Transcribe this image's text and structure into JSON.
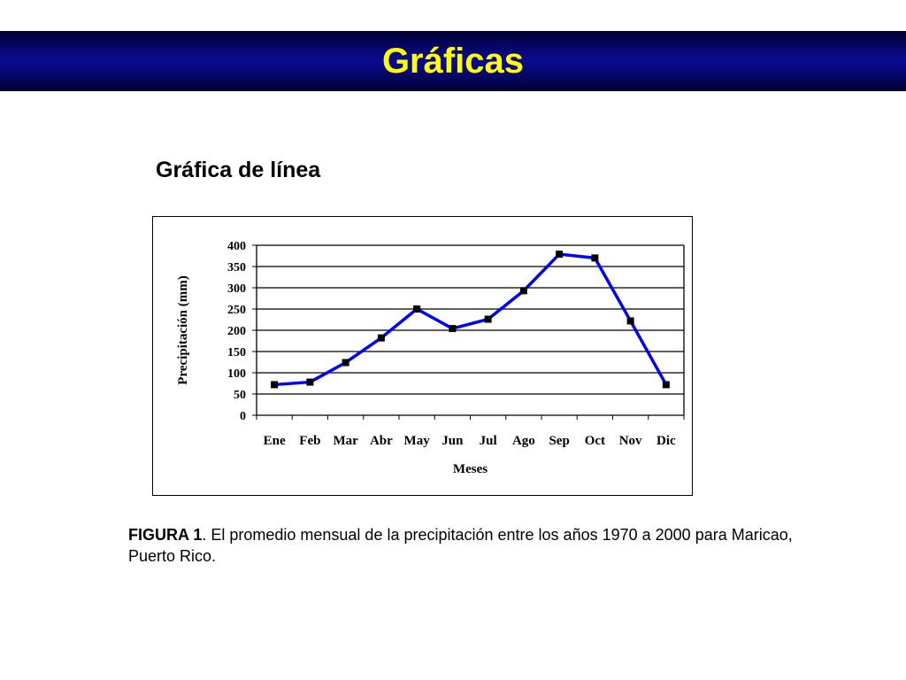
{
  "slide": {
    "title": "Gráficas",
    "heading": "Gráfica de línea",
    "colors": {
      "banner": "#0a0a8c",
      "title_text": "#ffff00",
      "line": "#0000ff",
      "marker": "#000000"
    }
  },
  "caption": {
    "label": "FIGURA 1",
    "text": ". El promedio mensual de la precipitación entre los años 1970 a 2000 para Maricao, Puerto Rico."
  },
  "chart_data": {
    "type": "line",
    "categories": [
      "Ene",
      "Feb",
      "Mar",
      "Abr",
      "May",
      "Jun",
      "Jul",
      "Ago",
      "Sep",
      "Oct",
      "Nov",
      "Dic"
    ],
    "series": [
      {
        "values": [
          72,
          78,
          124,
          182,
          250,
          204,
          226,
          293,
          379,
          370,
          222,
          72
        ]
      }
    ],
    "xlabel": "Meses",
    "ylabel": "Precipitación (mm)",
    "ylim": [
      0,
      400
    ],
    "yticks": [
      0,
      50,
      100,
      150,
      200,
      250,
      300,
      350,
      400
    ],
    "grid": true,
    "legend": "none"
  }
}
